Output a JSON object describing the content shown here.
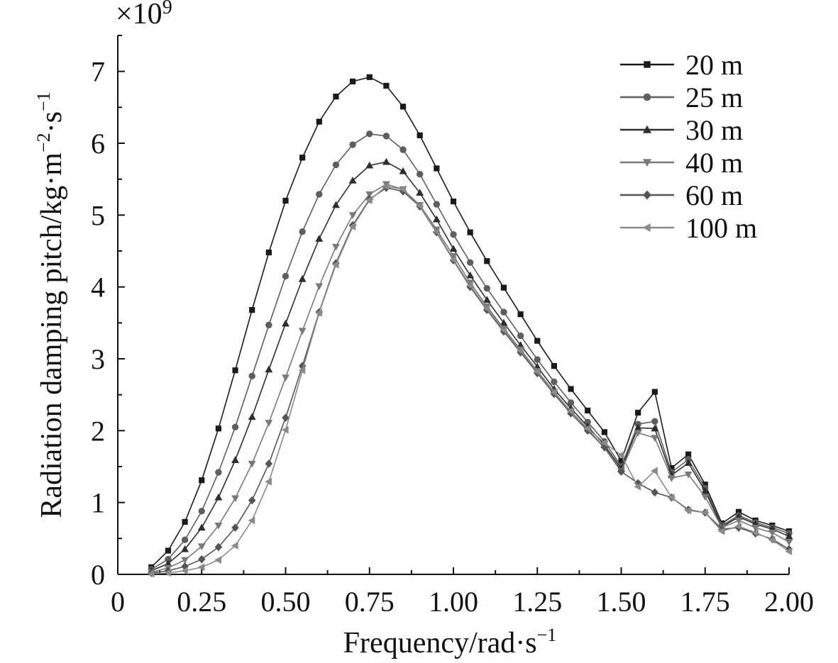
{
  "chart_data": {
    "type": "line",
    "xlabel": "Frequency/rad·s",
    "xlabel_sup": "−1",
    "ylabel": "Radiation damping pitch/kg·m",
    "ylabel_sup1": "−2",
    "ylabel_mid": "·s",
    "ylabel_sup2": "−1",
    "y_multiplier": "×10",
    "y_multiplier_exp": "9",
    "xlim": [
      0,
      2.0
    ],
    "ylim": [
      0,
      7.5
    ],
    "x_ticks": [
      0,
      0.25,
      0.5,
      0.75,
      1.0,
      1.25,
      1.5,
      1.75,
      2.0
    ],
    "x_tick_labels": [
      "0",
      "0.25",
      "0.50",
      "0.75",
      "1.00",
      "1.25",
      "1.50",
      "1.75",
      "2.00"
    ],
    "y_ticks": [
      0,
      1,
      2,
      3,
      4,
      5,
      6,
      7
    ],
    "y_tick_labels": [
      "0",
      "1",
      "2",
      "3",
      "4",
      "5",
      "6",
      "7"
    ],
    "grid": false,
    "legend_position": "top-right",
    "x": [
      0.1,
      0.15,
      0.2,
      0.25,
      0.3,
      0.35,
      0.4,
      0.45,
      0.5,
      0.55,
      0.6,
      0.65,
      0.7,
      0.75,
      0.8,
      0.85,
      0.9,
      0.95,
      1.0,
      1.05,
      1.1,
      1.15,
      1.2,
      1.25,
      1.3,
      1.35,
      1.4,
      1.45,
      1.5,
      1.55,
      1.6,
      1.65,
      1.7,
      1.75,
      1.8,
      1.85,
      1.9,
      1.95,
      2.0
    ],
    "series": [
      {
        "name": "20 m",
        "marker": "square",
        "color": "#1a1a1a",
        "values": [
          0.1,
          0.33,
          0.73,
          1.31,
          2.03,
          2.84,
          3.68,
          4.48,
          5.2,
          5.8,
          6.3,
          6.65,
          6.86,
          6.92,
          6.8,
          6.51,
          6.11,
          5.65,
          5.19,
          4.76,
          4.36,
          3.99,
          3.62,
          3.25,
          2.9,
          2.58,
          2.28,
          1.98,
          1.58,
          2.25,
          2.54,
          1.48,
          1.67,
          1.25,
          0.71,
          0.87,
          0.75,
          0.68,
          0.6
        ]
      },
      {
        "name": "25 m",
        "marker": "circle",
        "color": "#5e5e5e",
        "values": [
          0.07,
          0.21,
          0.48,
          0.88,
          1.42,
          2.05,
          2.76,
          3.47,
          4.15,
          4.77,
          5.29,
          5.7,
          5.98,
          6.13,
          6.1,
          5.91,
          5.57,
          5.15,
          4.73,
          4.34,
          3.98,
          3.65,
          3.32,
          2.99,
          2.68,
          2.39,
          2.12,
          1.85,
          1.5,
          2.09,
          2.13,
          1.42,
          1.6,
          1.2,
          0.68,
          0.82,
          0.72,
          0.65,
          0.57
        ]
      },
      {
        "name": "30 m",
        "marker": "triangle-up",
        "color": "#2e2e2e",
        "values": [
          0.05,
          0.15,
          0.35,
          0.65,
          1.07,
          1.59,
          2.19,
          2.85,
          3.49,
          4.11,
          4.67,
          5.14,
          5.48,
          5.69,
          5.74,
          5.61,
          5.31,
          4.94,
          4.53,
          4.16,
          3.82,
          3.5,
          3.19,
          2.89,
          2.58,
          2.31,
          2.06,
          1.8,
          1.47,
          2.04,
          2.03,
          1.38,
          1.55,
          1.16,
          0.66,
          0.8,
          0.7,
          0.63,
          0.53
        ]
      },
      {
        "name": "40 m",
        "marker": "triangle-down",
        "color": "#7a7a7a",
        "values": [
          0.03,
          0.09,
          0.2,
          0.39,
          0.68,
          1.06,
          1.54,
          2.11,
          2.74,
          3.39,
          4.01,
          4.56,
          5.0,
          5.29,
          5.43,
          5.36,
          5.14,
          4.8,
          4.43,
          4.06,
          3.73,
          3.42,
          3.13,
          2.83,
          2.54,
          2.27,
          2.02,
          1.76,
          1.44,
          1.97,
          1.9,
          1.34,
          1.39,
          1.08,
          0.65,
          0.75,
          0.65,
          0.58,
          0.45
        ]
      },
      {
        "name": "60 m",
        "marker": "diamond",
        "color": "#555555",
        "values": [
          0.02,
          0.05,
          0.11,
          0.21,
          0.38,
          0.65,
          1.03,
          1.54,
          2.18,
          2.9,
          3.65,
          4.33,
          4.86,
          5.22,
          5.38,
          5.33,
          5.12,
          4.76,
          4.37,
          4.0,
          3.68,
          3.38,
          3.09,
          2.8,
          2.51,
          2.24,
          2.0,
          1.77,
          1.43,
          1.27,
          1.14,
          1.07,
          0.9,
          0.86,
          0.63,
          0.65,
          0.57,
          0.49,
          0.35
        ]
      },
      {
        "name": "100 m",
        "marker": "triangle-left",
        "color": "#8a8a8a",
        "values": [
          0.01,
          0.02,
          0.05,
          0.1,
          0.2,
          0.4,
          0.75,
          1.29,
          2.01,
          2.84,
          3.64,
          4.31,
          4.84,
          5.21,
          5.4,
          5.36,
          5.13,
          4.77,
          4.38,
          4.02,
          3.7,
          3.4,
          3.11,
          2.82,
          2.53,
          2.27,
          2.03,
          1.83,
          1.66,
          1.22,
          1.44,
          1.07,
          0.89,
          0.86,
          0.6,
          0.67,
          0.58,
          0.48,
          0.32
        ]
      }
    ]
  }
}
